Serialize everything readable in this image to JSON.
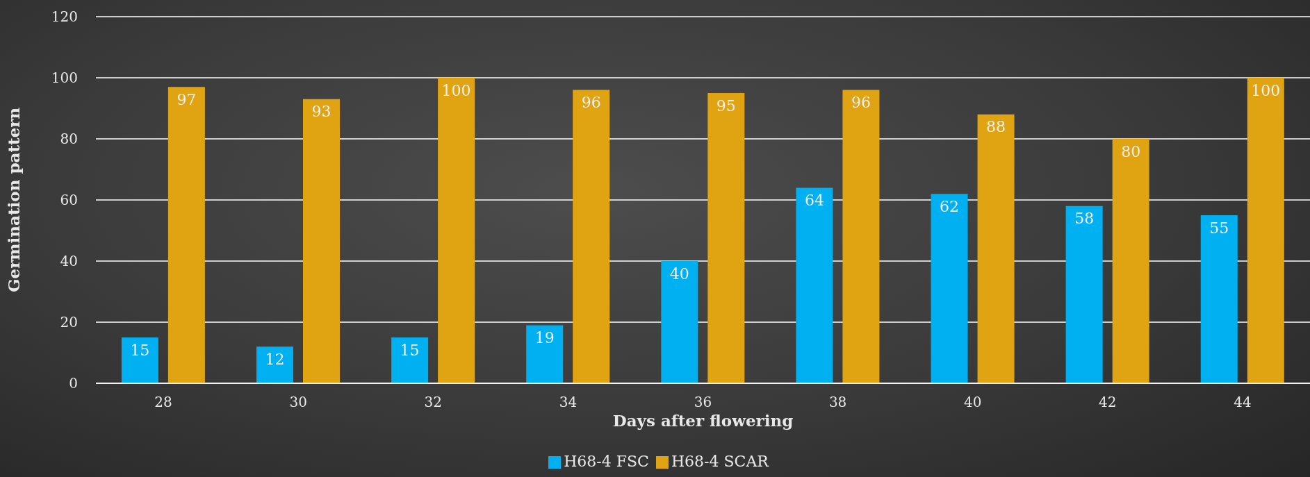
{
  "chart_data": {
    "type": "bar",
    "xlabel": "Days after flowering",
    "ylabel": "Germination pattern",
    "categories": [
      "28",
      "30",
      "32",
      "34",
      "36",
      "38",
      "40",
      "42",
      "44"
    ],
    "series": [
      {
        "name": "H68-4 FSC",
        "color": "#00b0f0",
        "values": [
          15,
          12,
          15,
          19,
          40,
          64,
          62,
          58,
          55
        ]
      },
      {
        "name": "H68-4 SCAR",
        "color": "#e0a412",
        "values": [
          97,
          93,
          100,
          96,
          95,
          96,
          88,
          80,
          100
        ]
      }
    ],
    "ylim": [
      0,
      120
    ],
    "yticks": [
      0,
      20,
      40,
      60,
      80,
      100,
      120
    ],
    "grid": "y",
    "legend": "bottom",
    "data_labels": true
  }
}
